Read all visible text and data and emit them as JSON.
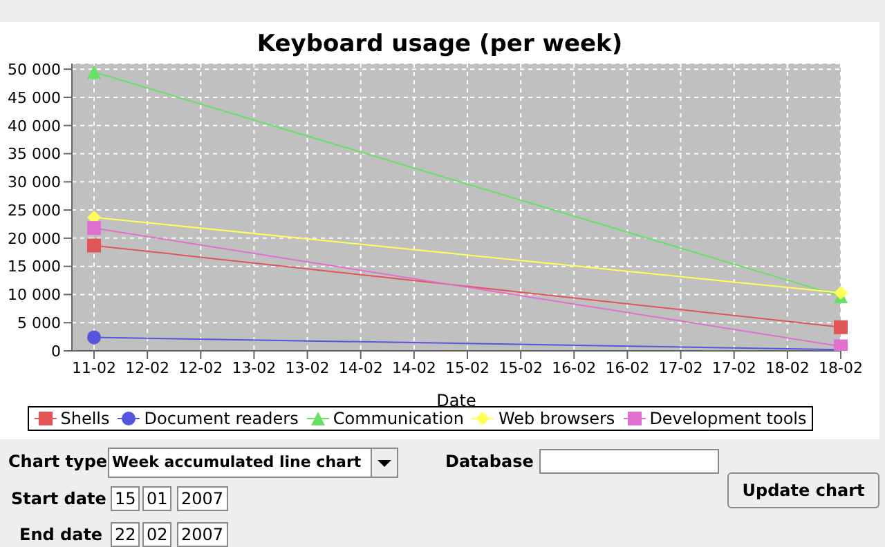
{
  "chart_data": {
    "type": "line",
    "title": "Keyboard usage (per week)",
    "xlabel": "Date",
    "categories": [
      "11-02",
      "12-02",
      "12-02",
      "13-02",
      "13-02",
      "14-02",
      "14-02",
      "15-02",
      "15-02",
      "16-02",
      "16-02",
      "17-02",
      "17-02",
      "18-02",
      "18-02"
    ],
    "series": [
      {
        "name": "Shells",
        "color": "#e05555",
        "marker": "square",
        "values": [
          18700,
          null,
          null,
          null,
          null,
          null,
          null,
          null,
          null,
          null,
          null,
          null,
          null,
          null,
          4200
        ]
      },
      {
        "name": "Document readers",
        "color": "#5555dd",
        "marker": "circle",
        "values": [
          2400,
          null,
          null,
          null,
          null,
          null,
          null,
          null,
          null,
          null,
          null,
          null,
          null,
          null,
          200
        ]
      },
      {
        "name": "Communication",
        "color": "#66e066",
        "marker": "triangle",
        "values": [
          49500,
          null,
          null,
          null,
          null,
          null,
          null,
          null,
          null,
          null,
          null,
          null,
          null,
          null,
          9700
        ]
      },
      {
        "name": "Web browsers",
        "color": "#ffff55",
        "marker": "diamond",
        "values": [
          23700,
          null,
          null,
          null,
          null,
          null,
          null,
          null,
          null,
          null,
          null,
          null,
          null,
          null,
          10300
        ]
      },
      {
        "name": "Development tools",
        "color": "#e070d0",
        "marker": "square",
        "values": [
          21800,
          null,
          null,
          null,
          null,
          null,
          null,
          null,
          null,
          null,
          null,
          null,
          null,
          null,
          800
        ]
      }
    ],
    "ylim": [
      0,
      51000
    ],
    "yticks": [
      {
        "value": 0,
        "label": "0"
      },
      {
        "value": 5000,
        "label": "5 000"
      },
      {
        "value": 10000,
        "label": "10 000"
      },
      {
        "value": 15000,
        "label": "15 000"
      },
      {
        "value": 20000,
        "label": "20 000"
      },
      {
        "value": 25000,
        "label": "25 000"
      },
      {
        "value": 30000,
        "label": "30 000"
      },
      {
        "value": 35000,
        "label": "35 000"
      },
      {
        "value": 40000,
        "label": "40 000"
      },
      {
        "value": 45000,
        "label": "45 000"
      },
      {
        "value": 50000,
        "label": "50 000"
      }
    ],
    "grid": true,
    "legend": "bottom",
    "annotations": [
      "Chart type",
      "Week accumulated line chart",
      "Database",
      "Start date",
      "15",
      "01",
      "2007",
      "End date",
      "22",
      "02",
      "2007",
      "Update chart"
    ]
  }
}
